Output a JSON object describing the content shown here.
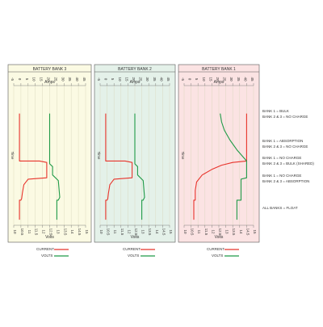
{
  "chart_data": [
    {
      "type": "line",
      "title": "BATTERY BANK 3",
      "top_axis_label": "Amps",
      "bottom_axis_label": "Volts",
      "time_label": "Time",
      "background": "#fbfae3",
      "amps_ticks": [
        "-5",
        "0",
        "5",
        "10",
        "15",
        "20",
        "25",
        "30",
        "35",
        "40",
        "45"
      ],
      "volts_ticks": [
        "10",
        "10.5",
        "11",
        "11.5",
        "12",
        "12.5",
        "13",
        "13.5",
        "14",
        "14.5",
        "15"
      ],
      "series": [
        {
          "name": "CURRENT",
          "color": "#e8332b",
          "points": [
            [
              -1,
              0.2
            ],
            [
              -1,
              0.54
            ],
            [
              13,
              0.54
            ],
            [
              18,
              0.55
            ],
            [
              18,
              0.66
            ],
            [
              5,
              0.67
            ],
            [
              2,
              0.71
            ],
            [
              1,
              0.77
            ],
            [
              0.5,
              0.81
            ],
            [
              0,
              0.82
            ],
            [
              -1,
              0.82
            ],
            [
              -1,
              0.96
            ]
          ]
        },
        {
          "name": "VOLTS",
          "color": "#1f9a47",
          "points": [
            [
              20,
              0.2
            ],
            [
              20,
              0.56
            ],
            [
              22,
              0.58
            ],
            [
              22,
              0.64
            ],
            [
              26,
              0.68
            ],
            [
              27,
              0.8
            ],
            [
              26,
              0.82
            ],
            [
              25,
              0.82
            ],
            [
              25,
              0.96
            ]
          ]
        }
      ]
    },
    {
      "type": "line",
      "title": "BATTERY BANK 2",
      "top_axis_label": "Amps",
      "bottom_axis_label": "Volts",
      "time_label": "Time",
      "background": "#e4f1e9",
      "amps_ticks": [
        "-5",
        "0",
        "5",
        "10",
        "15",
        "20",
        "25",
        "30",
        "35",
        "40",
        "45"
      ],
      "volts_ticks": [
        "10",
        "10.5",
        "11",
        "11.5",
        "12",
        "12.5",
        "13",
        "13.5",
        "14",
        "14.5",
        "15"
      ],
      "series": [
        {
          "name": "CURRENT",
          "color": "#e8332b",
          "points": [
            [
              -1,
              0.2
            ],
            [
              -1,
              0.54
            ],
            [
              13,
              0.54
            ],
            [
              18,
              0.55
            ],
            [
              18,
              0.66
            ],
            [
              5,
              0.67
            ],
            [
              2,
              0.71
            ],
            [
              1,
              0.77
            ],
            [
              0.5,
              0.81
            ],
            [
              0,
              0.82
            ],
            [
              -1,
              0.82
            ],
            [
              -1,
              0.96
            ]
          ]
        },
        {
          "name": "VOLTS",
          "color": "#1f9a47",
          "points": [
            [
              20,
              0.2
            ],
            [
              20,
              0.56
            ],
            [
              22,
              0.58
            ],
            [
              22,
              0.64
            ],
            [
              26,
              0.68
            ],
            [
              27,
              0.8
            ],
            [
              26,
              0.82
            ],
            [
              25,
              0.82
            ],
            [
              25,
              0.96
            ]
          ]
        }
      ]
    },
    {
      "type": "line",
      "title": "BATTERY BANK 1",
      "top_axis_label": "Amps",
      "bottom_axis_label": "Volts",
      "time_label": "Time",
      "background": "#fbe3e3",
      "amps_ticks": [
        "-5",
        "0",
        "5",
        "10",
        "15",
        "20",
        "25",
        "30",
        "35",
        "40",
        "45"
      ],
      "volts_ticks": [
        "10",
        "10.5",
        "11",
        "11.5",
        "12",
        "12.5",
        "13",
        "13.5",
        "14",
        "14.5",
        "15"
      ],
      "series": [
        {
          "name": "CURRENT",
          "color": "#e8332b",
          "points": [
            [
              40,
              0.2
            ],
            [
              40,
              0.54
            ],
            [
              30,
              0.55
            ],
            [
              22,
              0.57
            ],
            [
              15,
              0.6
            ],
            [
              8,
              0.64
            ],
            [
              4,
              0.69
            ],
            [
              3,
              0.75
            ],
            [
              3,
              0.82
            ],
            [
              2,
              0.82
            ],
            [
              2,
              0.96
            ]
          ]
        },
        {
          "name": "VOLTS",
          "color": "#1f9a47",
          "points": [
            [
              21,
              0.2
            ],
            [
              22,
              0.26
            ],
            [
              24,
              0.32
            ],
            [
              28,
              0.39
            ],
            [
              33,
              0.46
            ],
            [
              40,
              0.54
            ],
            [
              40,
              0.66
            ],
            [
              36,
              0.67
            ],
            [
              36,
              0.77
            ],
            [
              36,
              0.82
            ],
            [
              33,
              0.82
            ],
            [
              33,
              0.96
            ]
          ]
        }
      ]
    }
  ],
  "annotations": [
    [
      "BANK 1 = BULK",
      "BANK 2 & 3 = NO CHARGE"
    ],
    [
      "BANK 1 = ABSORPTION",
      "BANK 2 & 3 = NO CHARGE"
    ],
    [
      "BANK 1 = NO CHARGE",
      "BANK 2 & 3 = BULK (SHARED)"
    ],
    [
      "BANK 1 = NO CHARGE",
      "BANK 2 & 3 = ABSORPTION"
    ],
    [
      "ALL BANKS = FLOAT"
    ]
  ],
  "legend": {
    "current": "CURRENT",
    "volts": "VOLTS"
  },
  "colors": {
    "current": "#e8332b",
    "volts": "#1f9a47",
    "frame": "#555555",
    "grid": "#d8d4b8"
  }
}
